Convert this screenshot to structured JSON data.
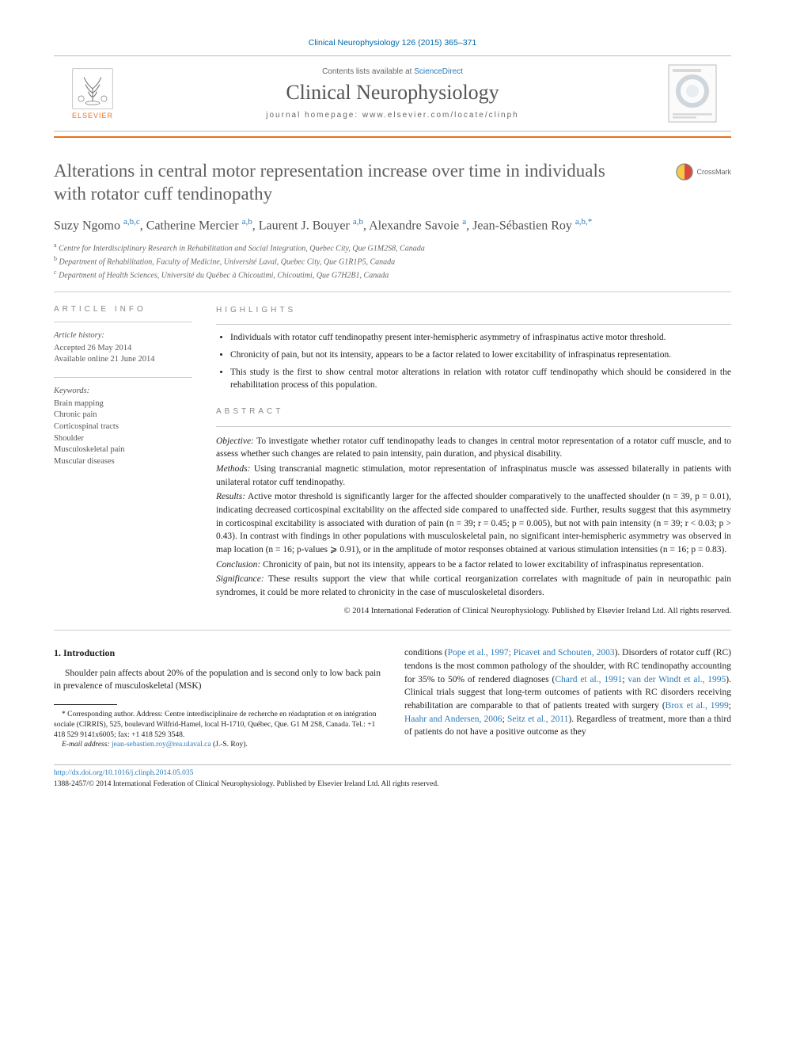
{
  "citation": "Clinical Neurophysiology 126 (2015) 365–371",
  "masthead": {
    "contents_prefix": "Contents lists available at ",
    "contents_link": "ScienceDirect",
    "journal_name": "Clinical Neurophysiology",
    "homepage_prefix": "journal homepage: ",
    "homepage_url": "www.elsevier.com/locate/clinph",
    "publisher_name": "ELSEVIER"
  },
  "colors": {
    "accent": "#e9711c",
    "link": "#2a7ab9",
    "title_grey": "#606060"
  },
  "crossmark_label": "CrossMark",
  "title": "Alterations in central motor representation increase over time in individuals with rotator cuff tendinopathy",
  "authors_html": "Suzy Ngomo <a>a,b,c</a>, Catherine Mercier <a>a,b</a>, Laurent J. Bouyer <a>a,b</a>, Alexandre Savoie <a>a</a>, Jean-Sébastien Roy <a>a,b,</a><a>*</a>",
  "affiliations": [
    {
      "sup": "a",
      "text": "Centre for Interdisciplinary Research in Rehabilitation and Social Integration, Quebec City, Que G1M2S8, Canada"
    },
    {
      "sup": "b",
      "text": "Department of Rehabilitation, Faculty of Medicine, Université Laval, Quebec City, Que G1R1P5, Canada"
    },
    {
      "sup": "c",
      "text": "Department of Health Sciences, Université du Québec à Chicoutimi, Chicoutimi, Que G7H2B1, Canada"
    }
  ],
  "article_info": {
    "heading": "ARTICLE INFO",
    "history_label": "Article history:",
    "accepted": "Accepted 26 May 2014",
    "online": "Available online 21 June 2014",
    "keywords_label": "Keywords:",
    "keywords": [
      "Brain mapping",
      "Chronic pain",
      "Corticospinal tracts",
      "Shoulder",
      "Musculoskeletal pain",
      "Muscular diseases"
    ]
  },
  "highlights": {
    "heading": "HIGHLIGHTS",
    "items": [
      "Individuals with rotator cuff tendinopathy present inter-hemispheric asymmetry of infraspinatus active motor threshold.",
      "Chronicity of pain, but not its intensity, appears to be a factor related to lower excitability of infraspinatus representation.",
      "This study is the first to show central motor alterations in relation with rotator cuff tendinopathy which should be considered in the rehabilitation process of this population."
    ]
  },
  "abstract": {
    "heading": "ABSTRACT",
    "sections": [
      {
        "label": "Objective:",
        "text": "To investigate whether rotator cuff tendinopathy leads to changes in central motor representation of a rotator cuff muscle, and to assess whether such changes are related to pain intensity, pain duration, and physical disability."
      },
      {
        "label": "Methods:",
        "text": "Using transcranial magnetic stimulation, motor representation of infraspinatus muscle was assessed bilaterally in patients with unilateral rotator cuff tendinopathy."
      },
      {
        "label": "Results:",
        "text": "Active motor threshold is significantly larger for the affected shoulder comparatively to the unaffected shoulder (n = 39, p = 0.01), indicating decreased corticospinal excitability on the affected side compared to unaffected side. Further, results suggest that this asymmetry in corticospinal excitability is associated with duration of pain (n = 39; r = 0.45; p = 0.005), but not with pain intensity (n = 39; r < 0.03; p > 0.43). In contrast with findings in other populations with musculoskeletal pain, no significant inter-hemispheric asymmetry was observed in map location (n = 16; p-values ⩾ 0.91), or in the amplitude of motor responses obtained at various stimulation intensities (n = 16; p = 0.83)."
      },
      {
        "label": "Conclusion:",
        "text": "Chronicity of pain, but not its intensity, appears to be a factor related to lower excitability of infraspinatus representation."
      },
      {
        "label": "Significance:",
        "text": "These results support the view that while cortical reorganization correlates with magnitude of pain in neuropathic pain syndromes, it could be more related to chronicity in the case of musculoskeletal disorders."
      }
    ],
    "copyright": "© 2014 International Federation of Clinical Neurophysiology. Published by Elsevier Ireland Ltd. All rights reserved."
  },
  "body": {
    "section_number": "1.",
    "section_title": "Introduction",
    "col_left_para": "Shoulder pain affects about 20% of the population and is second only to low back pain in prevalence of musculoskeletal (MSK)",
    "col_right_para_pre": "conditions (",
    "col_right_ref1": "Pope et al., 1997; Picavet and Schouten, 2003",
    "col_right_para_mid1": "). Disorders of rotator cuff (RC) tendons is the most common pathology of the shoulder, with RC tendinopathy accounting for 35% to 50% of rendered diagnoses (",
    "col_right_ref2": "Chard et al., 1991",
    "col_right_sep": "; ",
    "col_right_ref3": "van der Windt et al., 1995",
    "col_right_para_mid2": "). Clinical trials suggest that long-term outcomes of patients with RC disorders receiving rehabilitation are comparable to that of patients treated with surgery (",
    "col_right_ref4": "Brox et al., 1999",
    "col_right_ref5": "Haahr and Andersen, 2006",
    "col_right_ref6": "Seitz et al., 2011",
    "col_right_para_end": "). Regardless of treatment, more than a third of patients do not have a positive outcome as they"
  },
  "footnotes": {
    "corr_label": "* Corresponding author.",
    "corr_text": "Address: Centre interdisciplinaire de recherche en réadaptation et en intégration sociale (CIRRIS), 525, boulevard Wilfrid-Hamel, local H-1710, Québec, Que. G1 M 2S8, Canada. Tel.: +1 418 529 9141x6005; fax: +1 418 529 3548.",
    "email_label": "E-mail address:",
    "email": "jean-sebastien.roy@rea.ulaval.ca",
    "email_suffix": "(J.-S. Roy)."
  },
  "footer": {
    "doi": "http://dx.doi.org/10.1016/j.clinph.2014.05.035",
    "issn_line": "1388-2457/© 2014 International Federation of Clinical Neurophysiology. Published by Elsevier Ireland Ltd. All rights reserved."
  }
}
